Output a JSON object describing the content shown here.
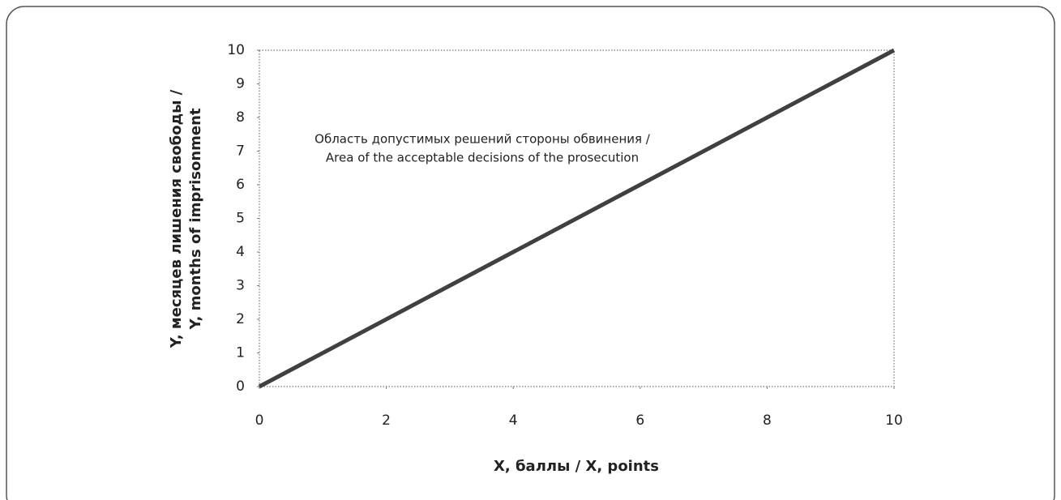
{
  "chart_data": {
    "type": "line",
    "x": [
      0,
      10
    ],
    "series": [
      {
        "name": null,
        "color": "#404040",
        "values": [
          0,
          10
        ]
      }
    ],
    "xlim": [
      0,
      10
    ],
    "xticks": [
      0,
      2,
      4,
      6,
      8,
      10
    ],
    "ylim": [
      0,
      10
    ],
    "yticks": [
      0,
      1,
      2,
      3,
      4,
      5,
      6,
      7,
      8,
      9,
      10
    ],
    "xlabel": "X, баллы / X, points",
    "ylabel": [
      "Y, месяцев лишения свободы /",
      "Y, months of imprisonment"
    ],
    "annotation": [
      "Область допустимых решений стороны обвинения /",
      "Area of the acceptable decisions of the prosecution"
    ]
  }
}
